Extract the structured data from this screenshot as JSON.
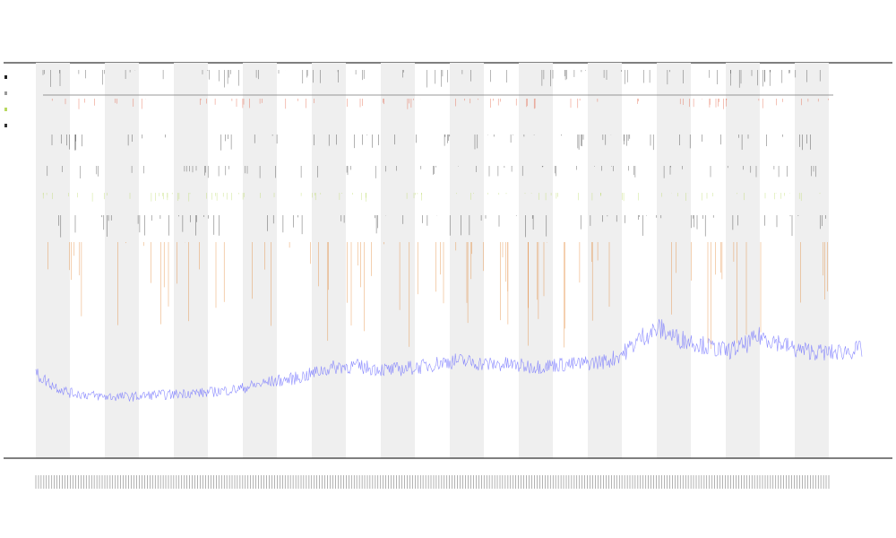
{
  "chart_data": {
    "type": "line",
    "title": "",
    "subtitle_1": "",
    "subtitle_2": "",
    "xlabel": "",
    "ylabel": "",
    "legend_placement": "left",
    "legend": [
      "",
      "",
      "",
      ""
    ],
    "band_count": 12,
    "x_tick_count": 300,
    "grid": false,
    "series": [
      {
        "color": "#6f6fff",
        "values": [
          0.18,
          0.12,
          0.08,
          0.07,
          0.06,
          0.06,
          0.06,
          0.07,
          0.07,
          0.08,
          0.08,
          0.09,
          0.1,
          0.12,
          0.14,
          0.15,
          0.17,
          0.2,
          0.22,
          0.22,
          0.21,
          0.2,
          0.21,
          0.22,
          0.24,
          0.25,
          0.24,
          0.23,
          0.23,
          0.22,
          0.22,
          0.23,
          0.23,
          0.24,
          0.25,
          0.3,
          0.38,
          0.42,
          0.37,
          0.35,
          0.32,
          0.3,
          0.33,
          0.38,
          0.35,
          0.31,
          0.3,
          0.29,
          0.3,
          0.31
        ]
      }
    ],
    "events": {
      "row_colors": [
        "#333333",
        "#e05030",
        "#222222",
        "#333333",
        "#b8d860",
        "#222222",
        "#e07a20"
      ]
    }
  }
}
